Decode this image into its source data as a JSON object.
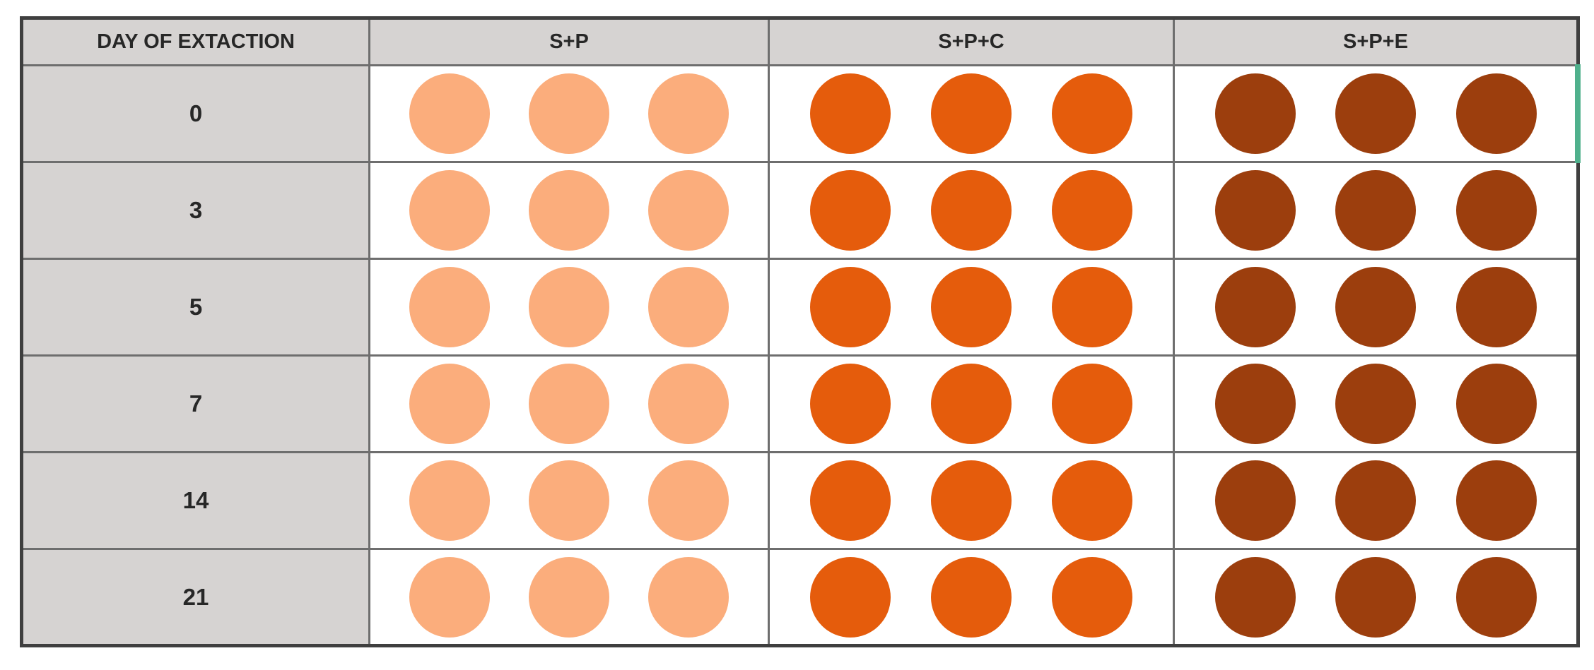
{
  "figure": {
    "kind": "sample-color-comparison-table"
  },
  "table": {
    "header": [
      "DAY OF EXTACTION",
      "S+P",
      "S+P+C",
      "S+P+E"
    ],
    "row_labels": [
      "0",
      "3",
      "5",
      "7",
      "14",
      "21"
    ],
    "dots_per_cell": 3,
    "accent_row_index": 0
  },
  "colors": {
    "background": "#ffffff",
    "header_fill": "#d6d3d2",
    "grid_line": "#6e6e6e",
    "outer_border": "#3f3f3f",
    "text": "#272727",
    "dot_colors_by_column": [
      "#fbad7c",
      "#e55c0c",
      "#9c3e0d"
    ],
    "row0_right_edge_accent": "#4fb08c"
  },
  "chart_data": {
    "type": "table",
    "columns": [
      "DAY OF EXTACTION",
      "S+P",
      "S+P+C",
      "S+P+E"
    ],
    "days": [
      "0",
      "3",
      "5",
      "7",
      "14",
      "21"
    ],
    "series": [
      {
        "name": "S+P",
        "swatch_color": "#fbad7c",
        "dots_per_cell": 3,
        "replicates_shown": 3
      },
      {
        "name": "S+P+C",
        "swatch_color": "#e55c0c",
        "dots_per_cell": 3,
        "replicates_shown": 3
      },
      {
        "name": "S+P+E",
        "swatch_color": "#9c3e0d",
        "dots_per_cell": 3,
        "replicates_shown": 3
      }
    ],
    "layout_hints": {
      "first_column_fill": "#d6d3d2",
      "data_cell_fill": "#ffffff",
      "grid": true
    }
  }
}
